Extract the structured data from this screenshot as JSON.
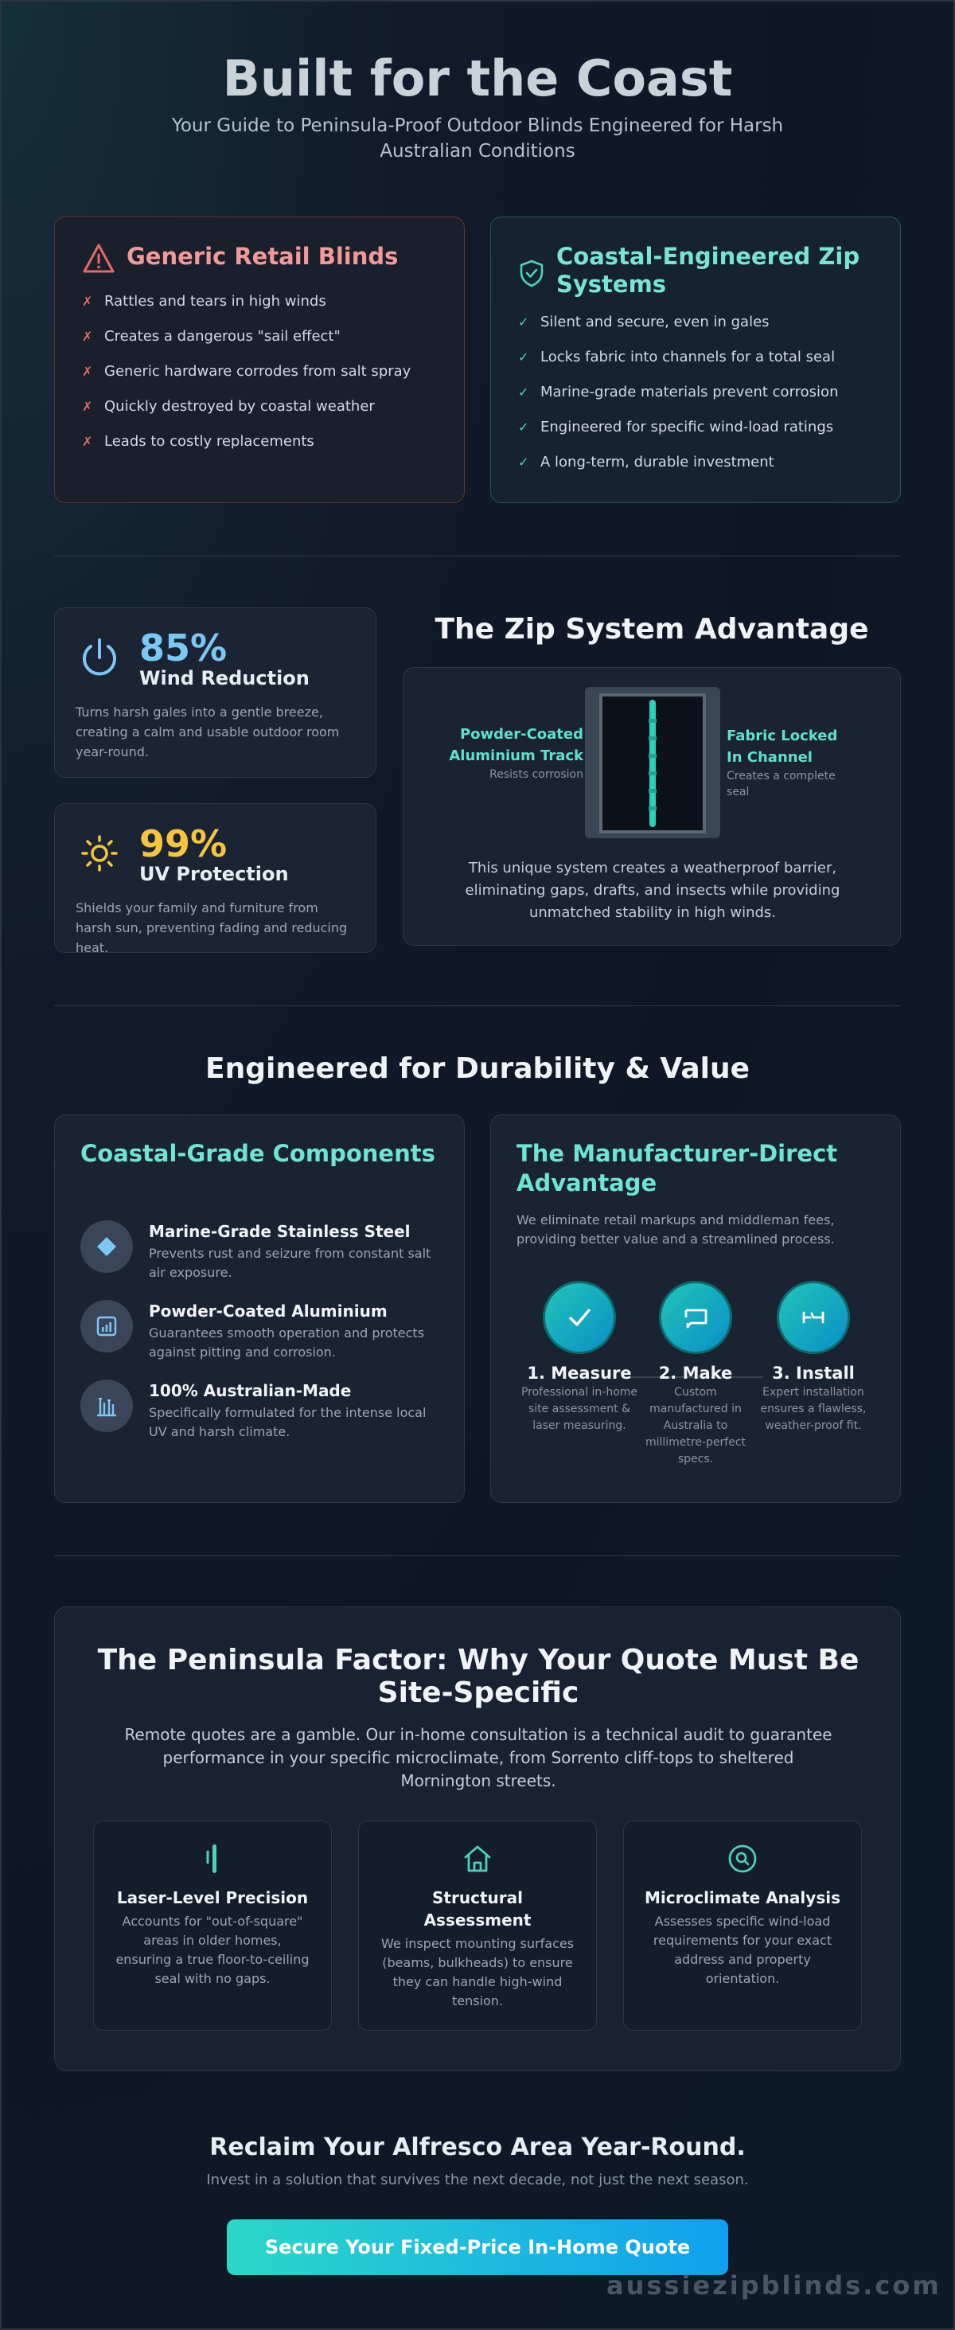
{
  "header": {
    "title": "Built for the Coast",
    "subtitle": "Your Guide to Peninsula-Proof Outdoor Blinds Engineered for Harsh Australian Conditions"
  },
  "comparison": {
    "bad": {
      "title": "Generic Retail Blinds",
      "icon": "warning-triangle-icon",
      "items": [
        "Rattles and tears in high winds",
        "Creates a dangerous \"sail effect\"",
        "Generic hardware corrodes from salt spray",
        "Quickly destroyed by coastal weather",
        "Leads to costly replacements"
      ]
    },
    "good": {
      "title": "Coastal-Engineered Zip Systems",
      "icon": "shield-check-icon",
      "items": [
        "Silent and secure, even in gales",
        "Locks fabric into channels for a total seal",
        "Marine-grade materials prevent corrosion",
        "Engineered for specific wind-load ratings",
        "A long-term, durable investment"
      ]
    }
  },
  "stats": [
    {
      "value": "85%",
      "label": "Wind Reduction",
      "icon": "power-icon",
      "color": "#7cc8f5",
      "desc": "Turns harsh gales into a gentle breeze, creating a calm and usable outdoor room year-round."
    },
    {
      "value": "99%",
      "label": "UV Protection",
      "icon": "sun-icon",
      "color": "#f5c542",
      "desc": "Shields your family and furniture from harsh sun, preventing fading and reducing heat."
    }
  ],
  "zip": {
    "title": "The Zip System Advantage",
    "left_label": "Powder-Coated Aluminium Track",
    "left_sub": "Resists corrosion",
    "right_label": "Fabric Locked In Channel",
    "right_sub": "Creates a complete seal",
    "desc": "This unique system creates a weatherproof barrier, eliminating gaps, drafts, and insects while providing unmatched stability in high winds."
  },
  "durability": {
    "title": "Engineered for Durability & Value",
    "components": {
      "title": "Coastal-Grade Components",
      "items": [
        {
          "name": "Marine-Grade Stainless Steel",
          "desc": "Prevents rust and seizure from constant salt air exposure.",
          "icon": "diamond-icon"
        },
        {
          "name": "Powder-Coated Aluminium",
          "desc": "Guarantees smooth operation and protects against pitting and corrosion.",
          "icon": "bar-chart-icon"
        },
        {
          "name": "100% Australian-Made",
          "desc": "Specifically formulated for the intense local UV and harsh climate.",
          "icon": "building-icon"
        }
      ]
    },
    "manufacturer": {
      "title": "The Manufacturer-Direct Advantage",
      "intro": "We eliminate retail markups and middleman fees, providing better value and a streamlined process.",
      "steps": [
        {
          "name": "1. Measure",
          "desc": "Professional in-home site assessment & laser measuring.",
          "icon": "check-icon"
        },
        {
          "name": "2. Make",
          "desc": "Custom manufactured in Australia to millimetre-perfect specs.",
          "icon": "flag-icon"
        },
        {
          "name": "3. Install",
          "desc": "Expert installation ensures a flawless, weather-proof fit.",
          "icon": "tool-icon"
        }
      ]
    }
  },
  "peninsula": {
    "title": "The Peninsula Factor: Why Your Quote Must Be Site-Specific",
    "desc": "Remote quotes are a gamble. Our in-home consultation is a technical audit to guarantee performance in your specific microclimate, from Sorrento cliff-tops to sheltered Mornington streets.",
    "cards": [
      {
        "title": "Laser-Level Precision",
        "desc": "Accounts for \"out-of-square\" areas in older homes, ensuring a true floor-to-ceiling seal with no gaps.",
        "icon": "laser-level-icon"
      },
      {
        "title": "Structural Assessment",
        "desc": "We inspect mounting surfaces (beams, bulkheads) to ensure they can handle high-wind tension.",
        "icon": "house-icon"
      },
      {
        "title": "Microclimate Analysis",
        "desc": "Assesses specific wind-load requirements for your exact address and property orientation.",
        "icon": "magnifier-icon"
      }
    ]
  },
  "cta": {
    "title": "Reclaim Your Alfresco Area Year-Round.",
    "subtitle": "Invest in a solution that survives the next decade, not just the next season.",
    "button": "Secure Your Fixed-Price In-Home Quote"
  },
  "watermark": "aussiezipblinds.com",
  "colors": {
    "accent_teal": "#4fd1bf",
    "accent_red": "#f09a9a",
    "accent_blue": "#7cc8f5",
    "accent_yellow": "#f5c542"
  }
}
